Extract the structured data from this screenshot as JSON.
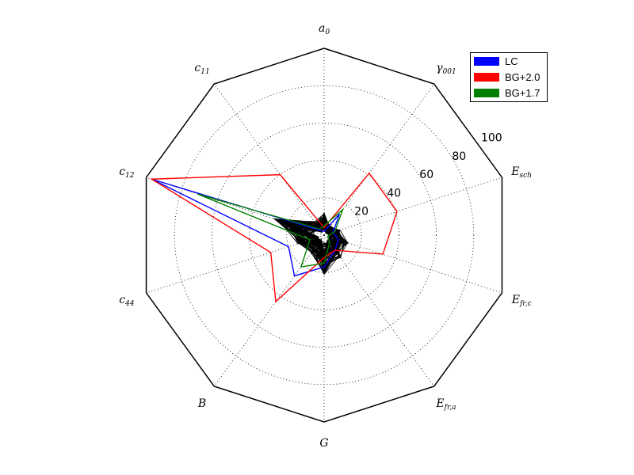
{
  "chart_data": {
    "type": "radar",
    "axes": [
      {
        "key": "a",
        "sub": "0"
      },
      {
        "key": "γ",
        "sub": "001"
      },
      {
        "key": "E",
        "sub": "sch"
      },
      {
        "key": "E",
        "sub": "fr,c"
      },
      {
        "key": "E",
        "sub": "fr,a"
      },
      {
        "key": "G",
        "sub": ""
      },
      {
        "key": "B",
        "sub": ""
      },
      {
        "key": "c",
        "sub": "44"
      },
      {
        "key": "c",
        "sub": "12"
      },
      {
        "key": "c",
        "sub": "11"
      }
    ],
    "rlim": [
      0,
      100
    ],
    "rticks": [
      20,
      40,
      60,
      80,
      100
    ],
    "rtick_labels": [
      "20",
      "40",
      "60",
      "80",
      "100"
    ],
    "grid": true,
    "legend_position": "top-right",
    "series": [
      {
        "name": "LC",
        "color": "#0000ff",
        "values": [
          2,
          14,
          5,
          8,
          10,
          17,
          27,
          20,
          97,
          3
        ]
      },
      {
        "name": "BG+2.0",
        "color": "#ff0000",
        "values": [
          4,
          41,
          41,
          33,
          10,
          12,
          44,
          30,
          97,
          40
        ]
      },
      {
        "name": "BG+1.7",
        "color": "#008000",
        "values": [
          5,
          17,
          6,
          2,
          5,
          15,
          21,
          8,
          71,
          4
        ]
      }
    ],
    "background_series": {
      "color": "#000000",
      "count": 70,
      "value_range": [
        1,
        28
      ]
    }
  }
}
